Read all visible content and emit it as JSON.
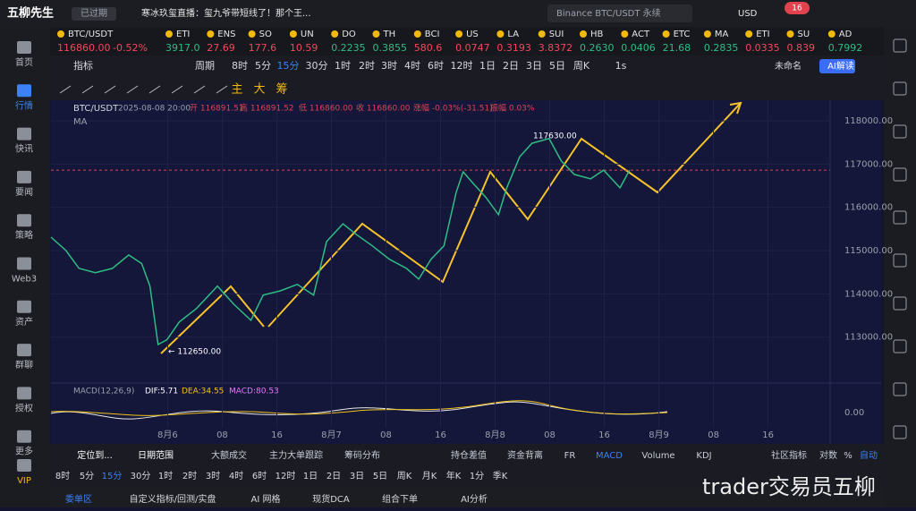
{
  "header": {
    "app_name": "五柳先生",
    "status": "已过期",
    "news": "寒冰玖玺直播：玺九爷带短线了！那个王...",
    "search": "Binance BTC/USDT 永续",
    "currency": "USD",
    "mail_count": "16"
  },
  "sidebar": [
    "首页",
    "行情",
    "快讯",
    "要闻",
    "策略",
    "Web3",
    "资产",
    "群聊",
    "授权",
    "更多",
    "VIP"
  ],
  "tickers": [
    {
      "symbol": "BTC/USDT",
      "price": "116860.00",
      "change": "-0.52%",
      "color": "#f6465d"
    },
    {
      "symbol": "ETI",
      "price": "3917.0",
      "color": "#2ebd85"
    },
    {
      "symbol": "ENS",
      "price": "27.69",
      "color": "#f6465d"
    },
    {
      "symbol": "SO",
      "price": "177.6",
      "color": "#f6465d"
    },
    {
      "symbol": "UN",
      "price": "10.59",
      "color": "#f6465d"
    },
    {
      "symbol": "DO",
      "price": "0.2235",
      "color": "#2ebd85"
    },
    {
      "symbol": "TH",
      "price": "0.3855",
      "color": "#2ebd85"
    },
    {
      "symbol": "BCI",
      "price": "580.6",
      "color": "#f6465d"
    },
    {
      "symbol": "US",
      "price": "0.0747",
      "color": "#f6465d"
    },
    {
      "symbol": "LA",
      "price": "0.3193",
      "color": "#f6465d"
    },
    {
      "symbol": "SUI",
      "price": "3.8372",
      "color": "#f6465d"
    },
    {
      "symbol": "HB",
      "price": "0.2630",
      "color": "#2ebd85"
    },
    {
      "symbol": "ACT",
      "price": "0.0406",
      "color": "#2ebd85"
    },
    {
      "symbol": "ETC",
      "price": "21.68",
      "color": "#2ebd85"
    },
    {
      "symbol": "MA",
      "price": "0.2835",
      "color": "#2ebd85"
    },
    {
      "symbol": "ETI",
      "price": "0.0335",
      "color": "#f6465d"
    },
    {
      "symbol": "SU",
      "price": "0.839",
      "color": "#f6465d"
    },
    {
      "symbol": "AD",
      "price": "0.7992",
      "color": "#2ebd85"
    }
  ],
  "toolbar": {
    "indicator": "指标",
    "period": "周期",
    "intervals": [
      "8时",
      "5分",
      "15分",
      "30分",
      "1时",
      "2时",
      "3时",
      "4时",
      "6时",
      "12时",
      "1日",
      "2日",
      "3日",
      "5日",
      "周K"
    ],
    "active_interval": 2,
    "rate": "1s",
    "layout_name": "未命名",
    "ai_button": "AI解读"
  },
  "drawing_tools": [
    "主",
    "大",
    "筹"
  ],
  "chart_data": {
    "type": "line",
    "title": "BTC/USDT",
    "subtitle": [
      "2025-08-08 20:00",
      "开 116891.51",
      "高 116891.52",
      "低 116860.00",
      "收 116860.00",
      "涨幅 -0.03%(-31.51)",
      "振幅 0.03%"
    ],
    "indicator": "MA",
    "x": [
      -17.1,
      -14.9,
      -13.0,
      -10.6,
      -8.1,
      -5.7,
      -3.8,
      -2.6,
      -1.4,
      -0.1,
      1.7,
      4.2,
      7.3,
      9.7,
      12.2,
      14.0,
      16.5,
      19.0,
      21.4,
      23.3,
      25.7,
      27.6,
      30.0,
      32.5,
      35.0,
      36.8,
      38.6,
      40.5,
      42.3,
      43.3,
      44.8,
      46.6,
      48.5,
      49.7,
      51.6,
      53.4,
      55.9,
      57.7,
      59.6,
      62.0,
      63.9,
      66.3,
      67.7
    ],
    "series": [
      {
        "name": "BTC/USDT",
        "color": "#2ebd85",
        "values": [
          115310,
          115000,
          114590,
          114490,
          114590,
          114900,
          114700,
          114180,
          112830,
          112940,
          113350,
          113660,
          114180,
          113760,
          113390,
          113970,
          114070,
          114220,
          113970,
          115210,
          115620,
          115380,
          115110,
          114800,
          114590,
          114340,
          114800,
          115110,
          116350,
          116820,
          116550,
          116240,
          115830,
          116450,
          117170,
          117480,
          117590,
          117070,
          116760,
          116660,
          116860,
          116450,
          116860
        ]
      }
    ],
    "current_price": 116860,
    "current_price_color": "#e0434e",
    "annotations": [
      "117630.00",
      "← 112650.00"
    ],
    "xlim": [
      -17.1,
      97.1
    ],
    "ylim": [
      111940,
      118475
    ],
    "yticks": [
      {
        "value": 118000,
        "label": "118000.00"
      },
      {
        "value": 117000,
        "label": "117000.00"
      },
      {
        "value": 116000,
        "label": "116000.00"
      },
      {
        "value": 115000,
        "label": "115000.00"
      },
      {
        "value": 114000,
        "label": "114000.00"
      },
      {
        "value": 113000,
        "label": "113000.00"
      }
    ],
    "xticks": [
      {
        "value": 0,
        "label": "8月6"
      },
      {
        "value": 8,
        "label": "08"
      },
      {
        "value": 16,
        "label": "16"
      },
      {
        "value": 24,
        "label": "8月7"
      },
      {
        "value": 32,
        "label": "08"
      },
      {
        "value": 40,
        "label": "16"
      },
      {
        "value": 48,
        "label": "8月8"
      },
      {
        "value": 56,
        "label": "08"
      },
      {
        "value": 64,
        "label": "16"
      },
      {
        "value": 72,
        "label": "8月9"
      },
      {
        "value": 80,
        "label": "08"
      },
      {
        "value": 88,
        "label": "16"
      }
    ],
    "grid": true
  },
  "macd": {
    "label": "MACD(12,26,9)",
    "dif": "DIF:5.71",
    "dea": "DEA:34.55",
    "macd": "MACD:80.53",
    "axis_label": "0.00"
  },
  "indicator_tabs": [
    "定位到...",
    "日期范围",
    "大额成交",
    "主力大单跟踪",
    "筹码分布",
    "持仓差值",
    "资金背离",
    "FR",
    "MACD",
    "Volume",
    "KDJ",
    "社区指标",
    "对数",
    "%",
    "自动"
  ],
  "timeframes": [
    "8时",
    "5分",
    "15分",
    "30分",
    "1时",
    "2时",
    "3时",
    "4时",
    "6时",
    "12时",
    "1日",
    "2日",
    "3日",
    "5日",
    "周K",
    "月K",
    "年K",
    "1分",
    "季K"
  ],
  "bottom_tabs": [
    "委单区",
    "自定义指标/回测/实盘",
    "AI 网格",
    "现货DCA",
    "组合下单",
    "AI分析"
  ],
  "watermark": "trader交易员五柳"
}
